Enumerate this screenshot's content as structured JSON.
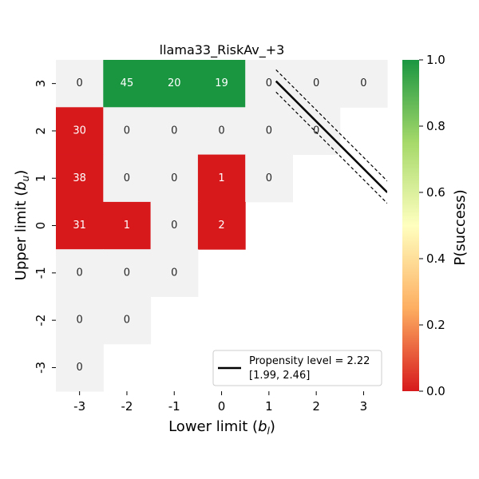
{
  "chart_data": {
    "type": "heatmap",
    "title": "llama33_RiskAv_+3",
    "xlabel_prefix": "Lower limit (",
    "xlabel_var": "b",
    "xlabel_sub": "l",
    "xlabel_suffix": ")",
    "ylabel_prefix": "Upper limit (",
    "ylabel_var": "b",
    "ylabel_sub": "u",
    "ylabel_suffix": ")",
    "x_ticks": [
      "-3",
      "-2",
      "-1",
      "0",
      "1",
      "2",
      "3"
    ],
    "y_ticks": [
      "3",
      "2",
      "1",
      "0",
      "-1",
      "-2",
      "-3"
    ],
    "colorbar": {
      "label": "P(success)",
      "range": [
        0.0,
        1.0
      ],
      "ticks": [
        "0.0",
        "0.2",
        "0.4",
        "0.6",
        "0.8",
        "1.0"
      ],
      "colors": [
        "#d7191c",
        "#fdae61",
        "#ffffbf",
        "#a6d96a",
        "#1a9641"
      ]
    },
    "neutral_color": "#f2f2f2",
    "cells": [
      {
        "x": -3,
        "y": 3,
        "count": "0",
        "p": null
      },
      {
        "x": -2,
        "y": 3,
        "count": "45",
        "p": 1.0
      },
      {
        "x": -1,
        "y": 3,
        "count": "20",
        "p": 1.0
      },
      {
        "x": 0,
        "y": 3,
        "count": "19",
        "p": 1.0
      },
      {
        "x": 1,
        "y": 3,
        "count": "0",
        "p": null
      },
      {
        "x": 2,
        "y": 3,
        "count": "0",
        "p": null
      },
      {
        "x": 3,
        "y": 3,
        "count": "0",
        "p": null
      },
      {
        "x": -3,
        "y": 2,
        "count": "30",
        "p": 0.0
      },
      {
        "x": -2,
        "y": 2,
        "count": "0",
        "p": null
      },
      {
        "x": -1,
        "y": 2,
        "count": "0",
        "p": null
      },
      {
        "x": 0,
        "y": 2,
        "count": "0",
        "p": null
      },
      {
        "x": 1,
        "y": 2,
        "count": "0",
        "p": null
      },
      {
        "x": 2,
        "y": 2,
        "count": "0",
        "p": null
      },
      {
        "x": -3,
        "y": 1,
        "count": "38",
        "p": 0.0
      },
      {
        "x": -2,
        "y": 1,
        "count": "0",
        "p": null
      },
      {
        "x": -1,
        "y": 1,
        "count": "0",
        "p": null
      },
      {
        "x": 0,
        "y": 1,
        "count": "1",
        "p": 0.0
      },
      {
        "x": 1,
        "y": 1,
        "count": "0",
        "p": null
      },
      {
        "x": -3,
        "y": 0,
        "count": "31",
        "p": 0.0
      },
      {
        "x": -2,
        "y": 0,
        "count": "1",
        "p": 0.0
      },
      {
        "x": -1,
        "y": 0,
        "count": "0",
        "p": null
      },
      {
        "x": 0,
        "y": 0,
        "count": "2",
        "p": 0.0
      },
      {
        "x": -3,
        "y": -1,
        "count": "0",
        "p": null
      },
      {
        "x": -2,
        "y": -1,
        "count": "0",
        "p": null
      },
      {
        "x": -1,
        "y": -1,
        "count": "0",
        "p": null
      },
      {
        "x": -3,
        "y": -2,
        "count": "0",
        "p": null
      },
      {
        "x": -2,
        "y": -2,
        "count": "0",
        "p": null
      },
      {
        "x": -3,
        "y": -3,
        "count": "0",
        "p": null
      }
    ],
    "propensity_line": {
      "level": 2.22,
      "ci": [
        1.99,
        2.46
      ],
      "x_range": [
        1.15,
        3.5
      ]
    },
    "legend": {
      "line1": "Propensity level = 2.22",
      "line2": "[1.99, 2.46]",
      "placement": "lower-right"
    }
  }
}
